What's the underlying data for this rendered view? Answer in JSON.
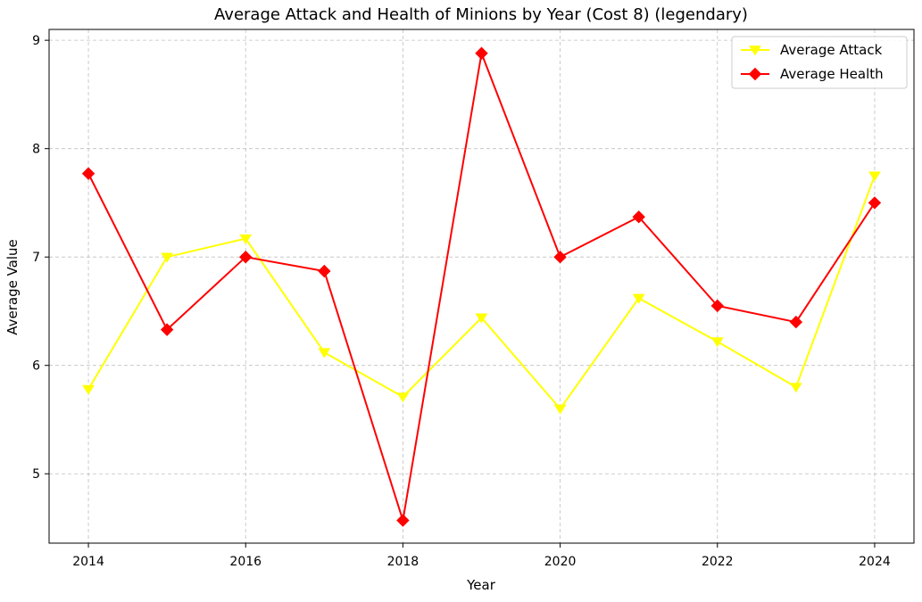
{
  "chart_data": {
    "type": "line",
    "title": "Average Attack and Health of Minions by Year (Cost 8) (legendary)",
    "xlabel": "Year",
    "ylabel": "Average Value",
    "x": [
      2014,
      2015,
      2016,
      2017,
      2018,
      2019,
      2020,
      2021,
      2022,
      2023,
      2024
    ],
    "xticks": [
      2014,
      2016,
      2018,
      2020,
      2022,
      2024
    ],
    "yticks": [
      5,
      6,
      7,
      8,
      9
    ],
    "xlim": [
      2013.5,
      2024.5
    ],
    "ylim": [
      4.36,
      9.1
    ],
    "grid": true,
    "legend_position": "top-right",
    "series": [
      {
        "name": "Average Attack",
        "color": "#ffff00",
        "marker": "triangle-down",
        "values": [
          5.78,
          7.0,
          7.17,
          6.12,
          5.71,
          6.44,
          5.6,
          6.62,
          6.22,
          5.8,
          7.75
        ]
      },
      {
        "name": "Average Health",
        "color": "#ff0000",
        "marker": "diamond",
        "values": [
          7.77,
          6.33,
          7.0,
          6.87,
          4.57,
          8.88,
          7.0,
          7.37,
          6.55,
          6.4,
          7.5
        ]
      }
    ]
  }
}
